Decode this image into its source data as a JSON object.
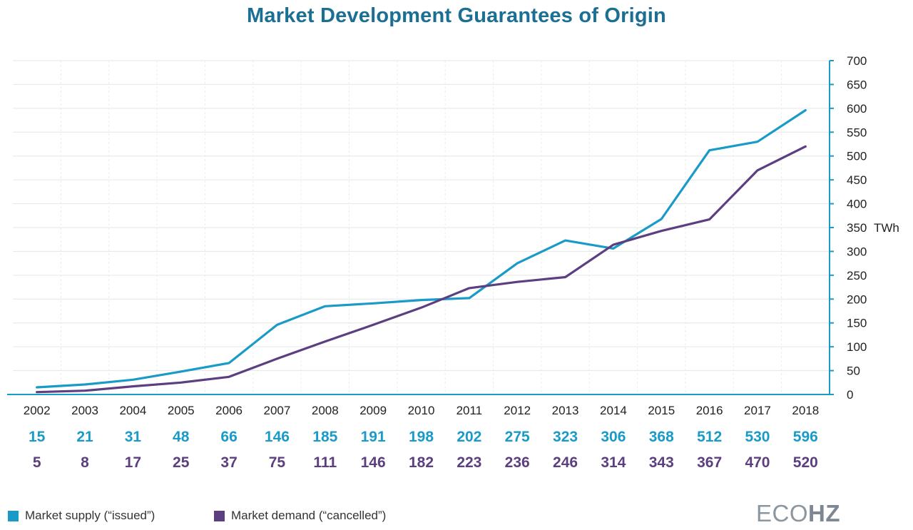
{
  "chart_data": {
    "type": "line",
    "title": "Market Development Guarantees of Origin",
    "x": [
      "2002",
      "2003",
      "2004",
      "2005",
      "2006",
      "2007",
      "2008",
      "2009",
      "2010",
      "2011",
      "2012",
      "2013",
      "2014",
      "2015",
      "2016",
      "2017",
      "2018"
    ],
    "ylim": [
      0,
      700
    ],
    "yticks": [
      0,
      50,
      100,
      150,
      200,
      250,
      300,
      350,
      400,
      450,
      500,
      550,
      600,
      650,
      700
    ],
    "y_unit": "TWh",
    "y_axis_position": "right",
    "grid": true,
    "series": [
      {
        "name": "Market supply (“issued”)",
        "color": "#1a9bc7",
        "values": [
          15,
          21,
          31,
          48,
          66,
          146,
          185,
          191,
          198,
          202,
          275,
          323,
          306,
          368,
          512,
          530,
          596
        ]
      },
      {
        "name": "Market demand (“cancelled”)",
        "color": "#5b3f80",
        "values": [
          5,
          8,
          17,
          25,
          37,
          75,
          111,
          146,
          182,
          223,
          236,
          246,
          314,
          343,
          367,
          470,
          520
        ]
      }
    ],
    "legend_placement": "bottom-left"
  },
  "colors": {
    "title": "#1b6f93",
    "axis": "#1a9bc7",
    "grid": "#e6e6e6",
    "supply": "#1a9bc7",
    "demand": "#5b3f80"
  },
  "logo": {
    "light": "ECO",
    "bold": "HZ"
  }
}
